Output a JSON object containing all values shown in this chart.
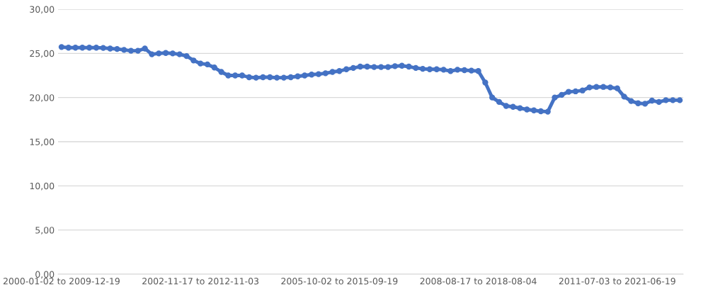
{
  "chart_data": {
    "type": "line",
    "categories": [
      "2000-01-02 to 2009-12-19",
      null,
      null,
      null,
      null,
      null,
      null,
      null,
      null,
      null,
      null,
      null,
      null,
      null,
      null,
      null,
      null,
      null,
      null,
      null,
      "2002-11-17 to 2012-11-03",
      null,
      null,
      null,
      null,
      null,
      null,
      null,
      null,
      null,
      null,
      null,
      null,
      null,
      null,
      null,
      null,
      null,
      null,
      null,
      "2005-10-02 to 2015-09-19",
      null,
      null,
      null,
      null,
      null,
      null,
      null,
      null,
      null,
      null,
      null,
      null,
      null,
      null,
      null,
      null,
      null,
      null,
      null,
      "2008-08-17 to 2018-08-04",
      null,
      null,
      null,
      null,
      null,
      null,
      null,
      null,
      null,
      null,
      null,
      null,
      null,
      null,
      null,
      null,
      null,
      null,
      null,
      "2011-07-03 to 2021-06-19",
      null,
      null,
      null,
      null,
      null,
      null,
      null,
      null,
      null
    ],
    "series": [
      {
        "color": "#4472c4",
        "values": [
          25.72,
          25.65,
          25.65,
          25.65,
          25.65,
          25.65,
          25.62,
          25.55,
          25.5,
          25.4,
          25.3,
          25.3,
          25.55,
          24.9,
          25.0,
          25.05,
          25.0,
          24.9,
          24.7,
          24.2,
          23.85,
          23.75,
          23.4,
          22.9,
          22.5,
          22.5,
          22.5,
          22.3,
          22.25,
          22.3,
          22.3,
          22.25,
          22.25,
          22.3,
          22.4,
          22.5,
          22.6,
          22.65,
          22.75,
          22.9,
          23.0,
          23.2,
          23.35,
          23.5,
          23.5,
          23.45,
          23.45,
          23.45,
          23.55,
          23.6,
          23.5,
          23.35,
          23.25,
          23.2,
          23.2,
          23.15,
          23.0,
          23.15,
          23.1,
          23.05,
          23.0,
          21.7,
          20.0,
          19.5,
          19.05,
          18.95,
          18.8,
          18.65,
          18.55,
          18.45,
          18.4,
          20.0,
          20.3,
          20.65,
          20.7,
          20.8,
          21.15,
          21.2,
          21.2,
          21.15,
          21.05,
          20.1,
          19.6,
          19.35,
          19.3,
          19.65,
          19.5,
          19.7,
          19.7,
          19.7
        ]
      }
    ],
    "ylim": [
      0,
      30
    ],
    "yticks": [
      {
        "value": 0,
        "label": "0,00"
      },
      {
        "value": 5,
        "label": "5,00"
      },
      {
        "value": 10,
        "label": "10,00"
      },
      {
        "value": 15,
        "label": "15,00"
      },
      {
        "value": 20,
        "label": "20,00"
      },
      {
        "value": 25,
        "label": "25,00"
      },
      {
        "value": 30,
        "label": "30,00"
      }
    ],
    "grid": "y",
    "marker": "circle",
    "line_style": "solid",
    "legend": false
  }
}
